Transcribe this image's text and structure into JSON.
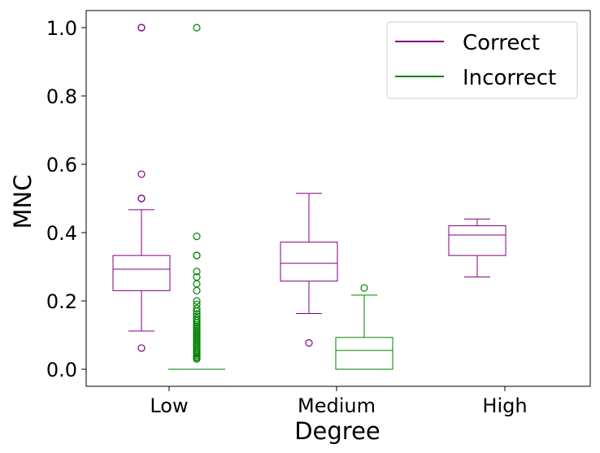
{
  "chart_data": {
    "type": "boxplot",
    "xlabel": "Degree",
    "ylabel": "MNC",
    "ylim": [
      -0.05,
      1.05
    ],
    "yticks": [
      0.0,
      0.2,
      0.4,
      0.6,
      0.8,
      1.0
    ],
    "ytick_labels": [
      "0.0",
      "0.2",
      "0.4",
      "0.6",
      "0.8",
      "1.0"
    ],
    "categories": [
      "Low",
      "Medium",
      "High"
    ],
    "legend_position": "top-right",
    "series": [
      {
        "name": "Correct",
        "color": "#800080",
        "boxes": [
          {
            "category": "Low",
            "whisker_low": 0.112,
            "q1": 0.23,
            "median": 0.293,
            "q3": 0.333,
            "whisker_high": 0.467,
            "outliers": [
              0.062,
              0.5,
              0.5,
              0.571,
              1.0,
              1.0
            ]
          },
          {
            "category": "Medium",
            "whisker_low": 0.163,
            "q1": 0.258,
            "median": 0.31,
            "q3": 0.372,
            "whisker_high": 0.515,
            "outliers": [
              0.077
            ]
          },
          {
            "category": "High",
            "whisker_low": 0.27,
            "q1": 0.333,
            "median": 0.393,
            "q3": 0.42,
            "whisker_high": 0.44,
            "outliers": []
          }
        ]
      },
      {
        "name": "Incorrect",
        "color": "#008000",
        "boxes": [
          {
            "category": "Low",
            "whisker_low": 0.0,
            "q1": 0.0,
            "median": 0.0,
            "q3": 0.0,
            "whisker_high": 0.0,
            "outliers": [
              0.03,
              0.034,
              0.038,
              0.042,
              0.046,
              0.05,
              0.055,
              0.06,
              0.065,
              0.07,
              0.075,
              0.08,
              0.085,
              0.09,
              0.095,
              0.1,
              0.105,
              0.11,
              0.115,
              0.12,
              0.125,
              0.13,
              0.136,
              0.142,
              0.148,
              0.155,
              0.162,
              0.17,
              0.178,
              0.19,
              0.2,
              0.23,
              0.25,
              0.27,
              0.286,
              0.333,
              0.333,
              0.389,
              1.0
            ]
          },
          {
            "category": "Medium",
            "whisker_low": 0.0,
            "q1": 0.0,
            "median": 0.055,
            "q3": 0.093,
            "whisker_high": 0.217,
            "outliers": [
              0.238
            ]
          }
        ]
      }
    ]
  }
}
